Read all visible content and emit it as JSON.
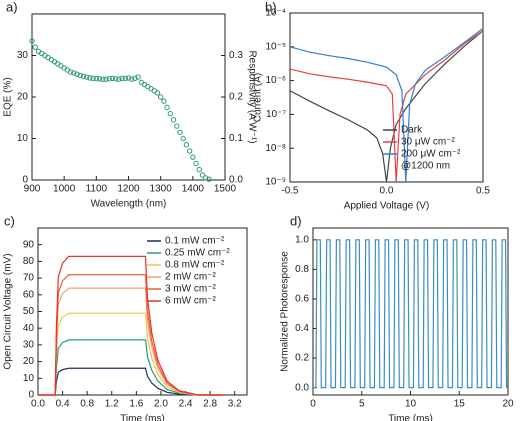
{
  "chart_data": [
    {
      "type": "scatter",
      "panel_label": "a)",
      "xlabel": "Wavelength (nm)",
      "ylabel": "EQE (%)",
      "y2label": "Responsivity (A W⁻¹)",
      "xlim": [
        900,
        1500
      ],
      "xticks": [
        900,
        1000,
        1100,
        1200,
        1300,
        1400,
        1500
      ],
      "ylim": [
        0,
        40
      ],
      "yticks": [
        0,
        10,
        20,
        30
      ],
      "y2lim": [
        0,
        0.4
      ],
      "y2ticks": [
        {
          "value": 0,
          "label": "0.0"
        },
        0.1,
        0.2,
        0.3
      ],
      "color": "#2e9a7a",
      "x": [
        900,
        910,
        920,
        930,
        940,
        950,
        960,
        970,
        980,
        990,
        1000,
        1010,
        1020,
        1030,
        1040,
        1050,
        1060,
        1070,
        1080,
        1090,
        1100,
        1110,
        1120,
        1130,
        1140,
        1150,
        1160,
        1170,
        1180,
        1190,
        1200,
        1210,
        1220,
        1230,
        1240,
        1250,
        1260,
        1270,
        1280,
        1290,
        1300,
        1310,
        1320,
        1330,
        1340,
        1350,
        1360,
        1370,
        1380,
        1390,
        1400,
        1410,
        1420,
        1430,
        1440,
        1450
      ],
      "values": [
        33.5,
        32,
        31,
        30.5,
        30,
        29.5,
        29,
        28.5,
        28,
        27.5,
        27,
        26.5,
        26,
        25.8,
        25.5,
        25.2,
        25,
        24.8,
        24.6,
        24.5,
        24.4,
        24.4,
        24.3,
        24.3,
        24.4,
        24.5,
        24.4,
        24.3,
        24.5,
        24.5,
        24.6,
        24.3,
        24.5,
        24.8,
        23.5,
        23,
        22.5,
        22,
        21.5,
        21,
        20,
        19,
        17.5,
        16,
        14.5,
        13,
        11.5,
        10,
        8.5,
        7,
        5.5,
        4,
        2.5,
        1.2,
        0.5,
        0.2
      ]
    },
    {
      "type": "line",
      "panel_label": "b)",
      "xlabel": "Applied Voltage (V)",
      "ylabel": "Current (A)",
      "log_y": true,
      "xlim": [
        -0.5,
        0.5
      ],
      "xticks": [
        -0.5,
        {
          "value": 0,
          "label": "0.0"
        },
        0.5
      ],
      "ylim": [
        1e-09,
        0.0001
      ],
      "yticks": [
        {
          "value": 1e-09,
          "label": "10⁻⁹"
        },
        {
          "value": 1e-08,
          "label": "10⁻⁸"
        },
        {
          "value": 1e-07,
          "label": "10⁻⁷"
        },
        {
          "value": 1e-06,
          "label": "10⁻⁶"
        },
        {
          "value": 1e-05,
          "label": "10⁻⁵"
        },
        {
          "value": 0.0001,
          "label": "10⁻⁴"
        }
      ],
      "legend": "lower right",
      "legend_note": "@1200 nm",
      "series": [
        {
          "name": "Dark",
          "color": "#454545",
          "x": [
            -0.5,
            -0.4,
            -0.3,
            -0.2,
            -0.1,
            -0.05,
            -0.02,
            0,
            0.02,
            0.05,
            0.1,
            0.2,
            0.3,
            0.4,
            0.5
          ],
          "values": [
            5e-07,
            2.5e-07,
            1.3e-07,
            7e-08,
            3.5e-08,
            2e-08,
            7e-09,
            1e-09,
            1e-08,
            5e-08,
            1.5e-07,
            8e-07,
            3e-06,
            1e-05,
            3e-05
          ]
        },
        {
          "name": "30 μW cm⁻²",
          "color": "#e84040",
          "x": [
            -0.5,
            -0.4,
            -0.3,
            -0.2,
            -0.1,
            0,
            0.03,
            0.05,
            0.07,
            0.1,
            0.2,
            0.3,
            0.4,
            0.5
          ],
          "values": [
            2.2e-06,
            1.6e-06,
            1.3e-06,
            1.1e-06,
            9e-07,
            7e-07,
            4e-07,
            1e-09,
            1e-07,
            4e-07,
            1.5e-06,
            4e-06,
            1.2e-05,
            3e-05
          ]
        },
        {
          "name": "200 μW cm⁻²",
          "color": "#2f7fd0",
          "x": [
            -0.5,
            -0.4,
            -0.3,
            -0.2,
            -0.1,
            0,
            0.05,
            0.08,
            0.1,
            0.12,
            0.15,
            0.2,
            0.3,
            0.4,
            0.5
          ],
          "values": [
            1e-05,
            7e-06,
            5.5e-06,
            4.5e-06,
            3.5e-06,
            2.5e-06,
            1.5e-06,
            5e-07,
            1e-09,
            2e-07,
            8e-07,
            2e-06,
            5e-06,
            1.3e-05,
            3.5e-05
          ]
        }
      ]
    },
    {
      "type": "line",
      "panel_label": "c)",
      "xlabel": "Time (ms)",
      "ylabel": "Open Circuit Voltage (mV)",
      "xlim": [
        0,
        3.4
      ],
      "xticks": [
        {
          "value": 0,
          "label": "0.0"
        },
        0.4,
        0.8,
        1.2,
        1.6,
        {
          "value": 2,
          "label": "2.0"
        },
        2.4,
        2.8,
        3.2
      ],
      "ylim": [
        0,
        100
      ],
      "yticks": [
        0,
        10,
        20,
        30,
        40,
        50,
        60,
        70,
        80,
        90
      ],
      "legend": "upper right",
      "x": [
        0,
        0.28,
        0.3,
        0.33,
        0.4,
        0.5,
        0.8,
        1.2,
        1.6,
        1.75,
        1.78,
        1.85,
        1.95,
        2.1,
        2.3,
        2.6,
        3.0
      ],
      "series": [
        {
          "name": "0.1 mW cm⁻²",
          "color": "#1f2f5a",
          "values": [
            0,
            0,
            8,
            13.6,
            15.2,
            16,
            16,
            16,
            16,
            16,
            11.2,
            7.2,
            4,
            1.6,
            0.5,
            0,
            0
          ]
        },
        {
          "name": "0.25 mW cm⁻²",
          "color": "#2a9b7b",
          "values": [
            0,
            0,
            16.5,
            28,
            31.4,
            33,
            33,
            33,
            33,
            33,
            23.1,
            14.9,
            8.3,
            3.3,
            1,
            0,
            0
          ]
        },
        {
          "name": "0.8 mW cm⁻²",
          "color": "#f2c14e",
          "values": [
            0,
            0,
            24.5,
            41.7,
            46.6,
            49,
            49,
            49,
            49,
            49,
            34.3,
            22.1,
            12.3,
            4.9,
            1.5,
            0,
            0
          ]
        },
        {
          "name": "2 mW cm⁻²",
          "color": "#f4a460",
          "values": [
            0,
            0,
            32,
            54.4,
            60.8,
            64,
            64,
            64,
            64,
            64,
            44.8,
            28.8,
            16,
            6.4,
            1.9,
            0,
            0
          ]
        },
        {
          "name": "3 mW cm⁻²",
          "color": "#e8603c",
          "values": [
            0,
            0,
            36,
            61.2,
            68.4,
            72,
            72,
            72,
            72,
            72,
            50.4,
            32.4,
            18,
            7.2,
            2.2,
            0,
            0
          ]
        },
        {
          "name": "6 mW cm⁻²",
          "color": "#e8302a",
          "values": [
            0,
            0,
            41.5,
            70.6,
            78.9,
            83,
            83,
            83,
            83,
            83,
            58.1,
            37.4,
            20.8,
            8.3,
            2.5,
            0,
            0
          ]
        }
      ]
    },
    {
      "type": "line",
      "panel_label": "d)",
      "xlabel": "Time (ms)",
      "ylabel": "Normalized Photoresponse",
      "xlim": [
        0,
        20
      ],
      "xticks": [
        0,
        5,
        10,
        15,
        20
      ],
      "ylim": [
        -0.05,
        1.08
      ],
      "yticks": [
        {
          "value": 0,
          "label": "0.0"
        },
        0.2,
        0.4,
        0.6,
        0.8,
        {
          "value": 1,
          "label": "1.0"
        }
      ],
      "x": [
        0,
        0.3,
        0.4,
        0.75,
        0.85,
        1.3,
        1.4,
        1.75,
        1.85,
        2.3,
        2.4,
        2.75,
        2.85,
        3.3,
        3.4,
        3.75,
        3.85,
        4.3,
        4.4,
        4.75,
        4.85,
        5.3,
        5.4,
        5.75,
        5.85,
        6.3,
        6.4,
        6.75,
        6.85,
        7.3,
        7.4,
        7.75,
        7.85,
        8.3,
        8.4,
        8.75,
        8.85,
        9.3,
        9.4,
        9.75,
        9.85,
        10.3,
        10.4,
        10.75,
        10.85,
        11.3,
        11.4,
        11.75,
        11.85,
        12.3,
        12.4,
        12.75,
        12.85,
        13.3,
        13.4,
        13.75,
        13.85,
        14.3,
        14.4,
        14.75,
        14.85,
        15.3,
        15.4,
        15.75,
        15.85,
        16.3,
        16.4,
        16.75,
        16.85,
        17.3,
        17.4,
        17.75,
        17.85,
        18.3,
        18.4,
        18.75,
        18.85,
        19.3,
        19.4,
        19.75,
        19.85,
        20
      ],
      "series": [
        {
          "color": "#3a8fc0",
          "values": [
            0,
            0,
            1,
            1,
            0,
            0,
            1,
            1,
            0,
            0,
            1,
            1,
            0,
            0,
            1,
            1,
            0,
            0,
            1,
            1,
            0,
            0,
            1,
            1,
            0,
            0,
            1,
            1,
            0,
            0,
            1,
            1,
            0,
            0,
            1,
            1,
            0,
            0,
            1,
            1,
            0,
            0,
            1,
            1,
            0,
            0,
            1,
            1,
            0,
            0,
            1,
            1,
            0,
            0,
            1,
            1,
            0,
            0,
            1,
            1,
            0,
            0,
            1,
            1,
            0,
            0,
            1,
            1,
            0,
            0,
            1,
            1,
            0,
            0,
            1,
            1,
            0,
            0,
            1,
            1,
            0,
            0
          ]
        }
      ]
    }
  ]
}
